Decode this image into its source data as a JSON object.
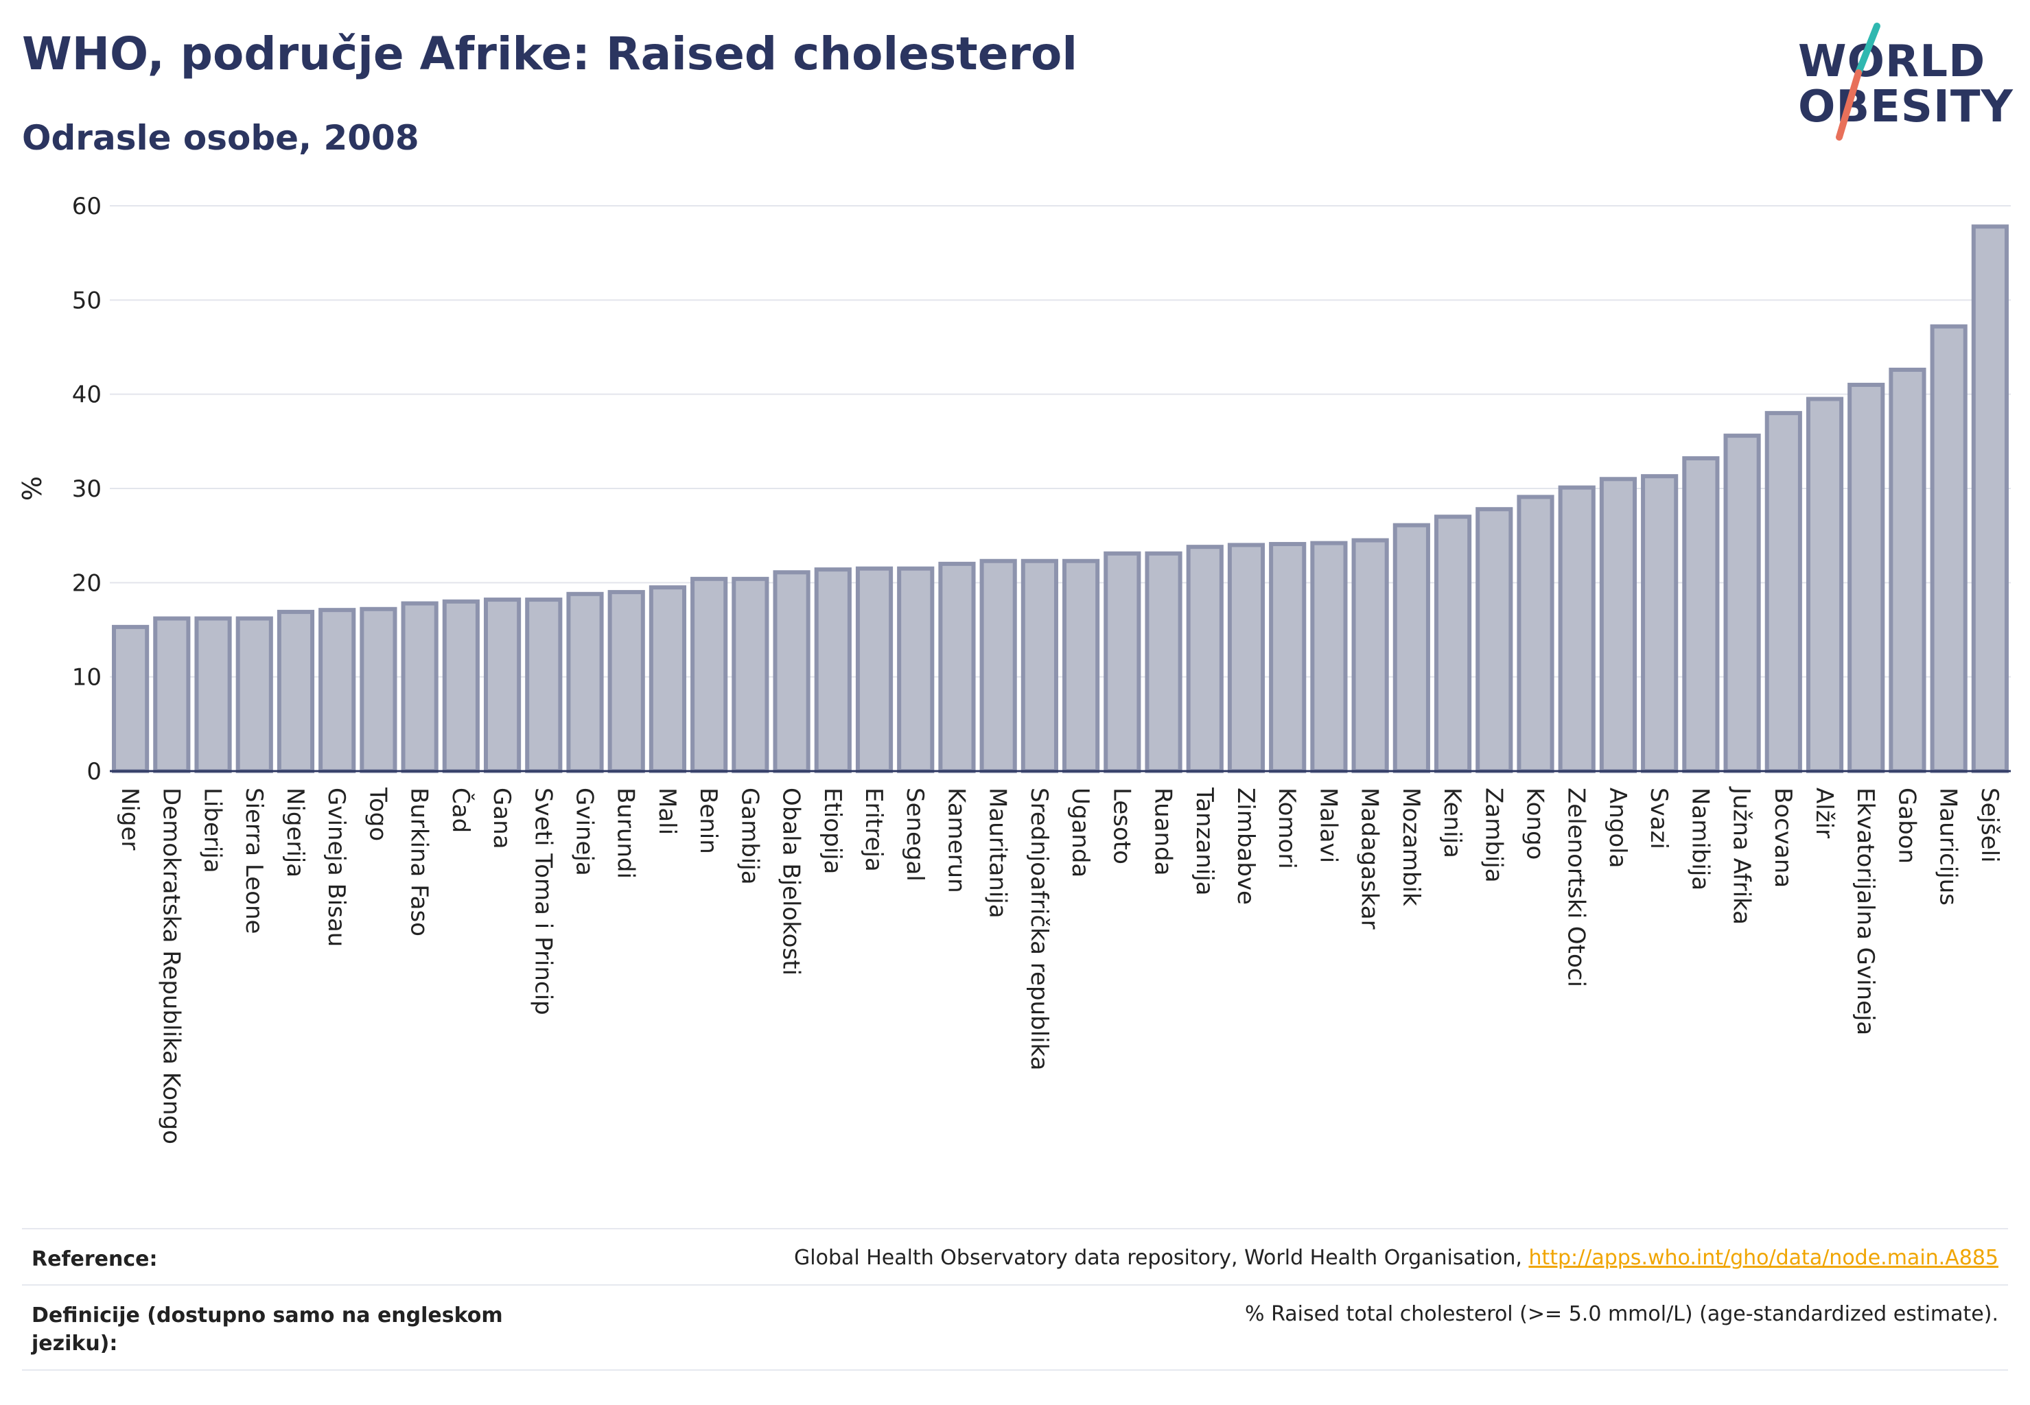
{
  "header": {
    "title": "WHO, područje Afrike: Raised cholesterol",
    "subtitle": "Odrasle osobe, 2008"
  },
  "logo": {
    "line1": "WORLD",
    "line2": "OBESITY"
  },
  "chart_data": {
    "type": "bar",
    "title": "WHO, područje Afrike: Raised cholesterol",
    "subtitle": "Odrasle osobe, 2008",
    "ylabel": "%",
    "xlabel": "",
    "ylim": [
      0,
      60
    ],
    "yticks": [
      0,
      10,
      20,
      30,
      40,
      50,
      60
    ],
    "grid": true,
    "bar_color": "#b9bdcb",
    "bar_edge_color": "#8d93ad",
    "categories": [
      "Niger",
      "Demokratska Republika Kongo",
      "Liberija",
      "Sierra Leone",
      "Nigerija",
      "Gvineja Bisau",
      "Togo",
      "Burkina Faso",
      "Čad",
      "Gana",
      "Sveti Toma i Princip",
      "Gvineja",
      "Burundi",
      "Mali",
      "Benin",
      "Gambija",
      "Obala Bjelokosti",
      "Etiopija",
      "Eritreja",
      "Senegal",
      "Kamerun",
      "Mauritanija",
      "Srednjoafrička republika",
      "Uganda",
      "Lesoto",
      "Ruanda",
      "Tanzanija",
      "Zimbabve",
      "Komori",
      "Malavi",
      "Madagaskar",
      "Mozambik",
      "Kenija",
      "Zambija",
      "Kongo",
      "Zelenortski Otoci",
      "Angola",
      "Svazi",
      "Namibija",
      "Južna Afrika",
      "Bocvana",
      "Alžir",
      "Ekvatorijalna Gvineja",
      "Gabon",
      "Mauricijus",
      "Sejšeli"
    ],
    "values": [
      15.3,
      16.2,
      16.2,
      16.2,
      16.9,
      17.1,
      17.2,
      17.8,
      18.0,
      18.2,
      18.2,
      18.8,
      19.0,
      19.5,
      20.4,
      20.4,
      21.1,
      21.4,
      21.5,
      21.5,
      22.0,
      22.3,
      22.3,
      22.3,
      23.1,
      23.1,
      23.8,
      24.0,
      24.1,
      24.2,
      24.5,
      26.1,
      27.0,
      27.8,
      29.1,
      30.1,
      31.0,
      31.3,
      33.2,
      35.6,
      38.0,
      39.5,
      41.0,
      42.6,
      47.2,
      57.8
    ]
  },
  "footer": {
    "reference_label": "Reference:",
    "reference_text": "Global Health Observatory data repository, World Health Organisation, ",
    "reference_link": "http://apps.who.int/gho/data/node.main.A885",
    "definition_label": "Definicije (dostupno samo na engleskom jeziku):",
    "definition_text": "% Raised total cholesterol (>= 5.0 mmol/L) (age-standardized estimate)."
  }
}
